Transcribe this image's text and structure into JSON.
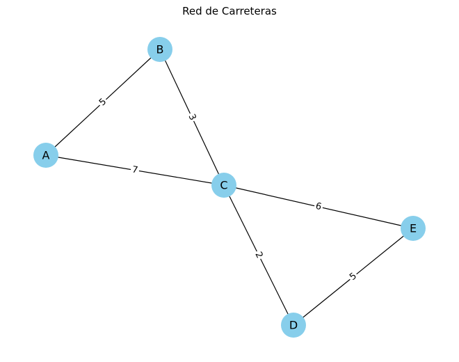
{
  "diagram": {
    "title": "Red de Carreteras",
    "node_color": "#87CEEB",
    "edge_color": "#000000",
    "nodes": [
      {
        "id": "A",
        "label": "A"
      },
      {
        "id": "B",
        "label": "B"
      },
      {
        "id": "C",
        "label": "C"
      },
      {
        "id": "D",
        "label": "D"
      },
      {
        "id": "E",
        "label": "E"
      }
    ],
    "edges": [
      {
        "source": "A",
        "target": "B",
        "weight": "5"
      },
      {
        "source": "A",
        "target": "C",
        "weight": "7"
      },
      {
        "source": "B",
        "target": "C",
        "weight": "3"
      },
      {
        "source": "C",
        "target": "D",
        "weight": "2"
      },
      {
        "source": "C",
        "target": "E",
        "weight": "6"
      },
      {
        "source": "D",
        "target": "E",
        "weight": "5"
      }
    ]
  }
}
